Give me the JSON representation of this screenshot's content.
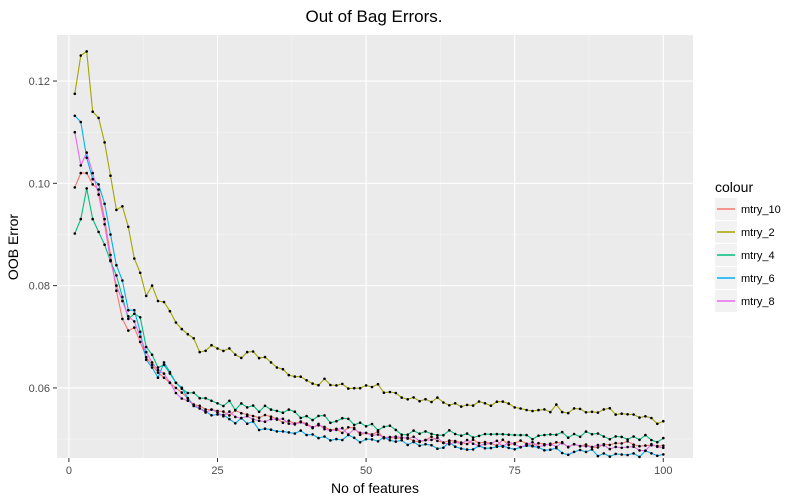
{
  "chart_data": {
    "type": "line",
    "title": "Out of Bag Errors.",
    "xlabel": "No of features",
    "ylabel": "OOB Error",
    "xlim": [
      -2,
      105
    ],
    "ylim": [
      0.0463,
      0.129
    ],
    "x_ticks": [
      0,
      25,
      50,
      75,
      100
    ],
    "x_tick_labels": [
      "0",
      "25",
      "50",
      "75",
      "100"
    ],
    "y_ticks": [
      0.06,
      0.08,
      0.1,
      0.12
    ],
    "y_tick_labels": [
      "0.06",
      "0.08",
      "0.10",
      "0.12"
    ],
    "grid": true,
    "legend": {
      "title": "colour",
      "position": "right"
    },
    "x_start": 1,
    "series": [
      {
        "name": "mtry_10",
        "color": "#F8766D",
        "anchors": [
          [
            1,
            0.0992
          ],
          [
            2,
            0.102
          ],
          [
            3,
            0.102
          ],
          [
            4,
            0.0998
          ],
          [
            5,
            0.0988
          ],
          [
            6,
            0.093
          ],
          [
            7,
            0.086
          ],
          [
            8,
            0.079
          ],
          [
            9,
            0.0735
          ],
          [
            10,
            0.0712
          ],
          [
            11,
            0.0718
          ],
          [
            12,
            0.069
          ],
          [
            13,
            0.066
          ],
          [
            14,
            0.0645
          ],
          [
            15,
            0.063
          ],
          [
            16,
            0.062
          ],
          [
            18,
            0.06
          ],
          [
            20,
            0.058
          ],
          [
            22,
            0.0565
          ],
          [
            25,
            0.0555
          ],
          [
            30,
            0.0548
          ],
          [
            35,
            0.054
          ],
          [
            40,
            0.053
          ],
          [
            45,
            0.052
          ],
          [
            50,
            0.0512
          ],
          [
            55,
            0.0502
          ],
          [
            60,
            0.0498
          ],
          [
            65,
            0.0496
          ],
          [
            70,
            0.0494
          ],
          [
            75,
            0.0492
          ],
          [
            80,
            0.049
          ],
          [
            85,
            0.049
          ],
          [
            90,
            0.049
          ],
          [
            95,
            0.0489
          ],
          [
            100,
            0.0487
          ]
        ],
        "noise": 0.0007
      },
      {
        "name": "mtry_2",
        "color": "#A3A500",
        "anchors": [
          [
            1,
            0.1175
          ],
          [
            2,
            0.125
          ],
          [
            3,
            0.1258
          ],
          [
            4,
            0.114
          ],
          [
            5,
            0.1128
          ],
          [
            6,
            0.108
          ],
          [
            7,
            0.1015
          ],
          [
            8,
            0.0948
          ],
          [
            9,
            0.0955
          ],
          [
            10,
            0.0915
          ],
          [
            11,
            0.0853
          ],
          [
            12,
            0.0825
          ],
          [
            13,
            0.078
          ],
          [
            14,
            0.08
          ],
          [
            15,
            0.077
          ],
          [
            16,
            0.0768
          ],
          [
            17,
            0.075
          ],
          [
            18,
            0.0728
          ],
          [
            19,
            0.0715
          ],
          [
            20,
            0.0705
          ],
          [
            21,
            0.0697
          ],
          [
            22,
            0.067
          ],
          [
            25,
            0.0677
          ],
          [
            28,
            0.0665
          ],
          [
            30,
            0.067
          ],
          [
            35,
            0.064
          ],
          [
            40,
            0.0615
          ],
          [
            45,
            0.0605
          ],
          [
            50,
            0.0605
          ],
          [
            55,
            0.059
          ],
          [
            60,
            0.0578
          ],
          [
            65,
            0.057
          ],
          [
            70,
            0.057
          ],
          [
            75,
            0.0562
          ],
          [
            80,
            0.0558
          ],
          [
            85,
            0.056
          ],
          [
            90,
            0.0558
          ],
          [
            95,
            0.0548
          ],
          [
            100,
            0.0535
          ]
        ],
        "noise": 0.0009
      },
      {
        "name": "mtry_4",
        "color": "#00BF7D",
        "anchors": [
          [
            1,
            0.0902
          ],
          [
            2,
            0.093
          ],
          [
            3,
            0.099
          ],
          [
            4,
            0.093
          ],
          [
            5,
            0.0905
          ],
          [
            6,
            0.088
          ],
          [
            7,
            0.0848
          ],
          [
            8,
            0.082
          ],
          [
            9,
            0.0778
          ],
          [
            10,
            0.0735
          ],
          [
            11,
            0.0745
          ],
          [
            12,
            0.0738
          ],
          [
            13,
            0.068
          ],
          [
            14,
            0.0665
          ],
          [
            15,
            0.064
          ],
          [
            16,
            0.0645
          ],
          [
            18,
            0.061
          ],
          [
            20,
            0.059
          ],
          [
            22,
            0.058
          ],
          [
            25,
            0.057
          ],
          [
            30,
            0.0562
          ],
          [
            35,
            0.0555
          ],
          [
            40,
            0.0545
          ],
          [
            45,
            0.0535
          ],
          [
            50,
            0.0525
          ],
          [
            55,
            0.0518
          ],
          [
            60,
            0.0515
          ],
          [
            65,
            0.051
          ],
          [
            70,
            0.051
          ],
          [
            75,
            0.0508
          ],
          [
            80,
            0.0508
          ],
          [
            85,
            0.051
          ],
          [
            90,
            0.0505
          ],
          [
            95,
            0.0505
          ],
          [
            100,
            0.0502
          ]
        ],
        "noise": 0.0009
      },
      {
        "name": "mtry_6",
        "color": "#00B0F6",
        "anchors": [
          [
            1,
            0.1132
          ],
          [
            2,
            0.112
          ],
          [
            3,
            0.105
          ],
          [
            4,
            0.1008
          ],
          [
            5,
            0.0998
          ],
          [
            6,
            0.096
          ],
          [
            7,
            0.09
          ],
          [
            8,
            0.084
          ],
          [
            9,
            0.081
          ],
          [
            10,
            0.0752
          ],
          [
            11,
            0.0752
          ],
          [
            12,
            0.071
          ],
          [
            13,
            0.0655
          ],
          [
            14,
            0.064
          ],
          [
            15,
            0.062
          ],
          [
            16,
            0.065
          ],
          [
            18,
            0.061
          ],
          [
            20,
            0.058
          ],
          [
            22,
            0.056
          ],
          [
            25,
            0.0548
          ],
          [
            30,
            0.053
          ],
          [
            35,
            0.0515
          ],
          [
            40,
            0.0508
          ],
          [
            45,
            0.05
          ],
          [
            50,
            0.05
          ],
          [
            55,
            0.0495
          ],
          [
            60,
            0.049
          ],
          [
            65,
            0.0485
          ],
          [
            70,
            0.0482
          ],
          [
            75,
            0.048
          ],
          [
            80,
            0.0478
          ],
          [
            85,
            0.0475
          ],
          [
            90,
            0.0472
          ],
          [
            95,
            0.0472
          ],
          [
            100,
            0.047
          ]
        ],
        "noise": 0.0008
      },
      {
        "name": "mtry_8",
        "color": "#E76BF3",
        "anchors": [
          [
            1,
            0.11
          ],
          [
            2,
            0.1035
          ],
          [
            3,
            0.106
          ],
          [
            4,
            0.102
          ],
          [
            5,
            0.0978
          ],
          [
            6,
            0.092
          ],
          [
            7,
            0.085
          ],
          [
            8,
            0.08
          ],
          [
            9,
            0.077
          ],
          [
            10,
            0.074
          ],
          [
            11,
            0.073
          ],
          [
            12,
            0.07
          ],
          [
            13,
            0.067
          ],
          [
            14,
            0.065
          ],
          [
            15,
            0.0635
          ],
          [
            16,
            0.0628
          ],
          [
            18,
            0.059
          ],
          [
            20,
            0.0575
          ],
          [
            22,
            0.056
          ],
          [
            25,
            0.0552
          ],
          [
            30,
            0.0545
          ],
          [
            35,
            0.0538
          ],
          [
            40,
            0.0528
          ],
          [
            45,
            0.0518
          ],
          [
            50,
            0.0512
          ],
          [
            55,
            0.0505
          ],
          [
            60,
            0.0498
          ],
          [
            65,
            0.0494
          ],
          [
            70,
            0.049
          ],
          [
            75,
            0.049
          ],
          [
            80,
            0.0488
          ],
          [
            85,
            0.049
          ],
          [
            90,
            0.0488
          ],
          [
            95,
            0.0485
          ],
          [
            100,
            0.0483
          ]
        ],
        "noise": 0.0007
      }
    ]
  }
}
